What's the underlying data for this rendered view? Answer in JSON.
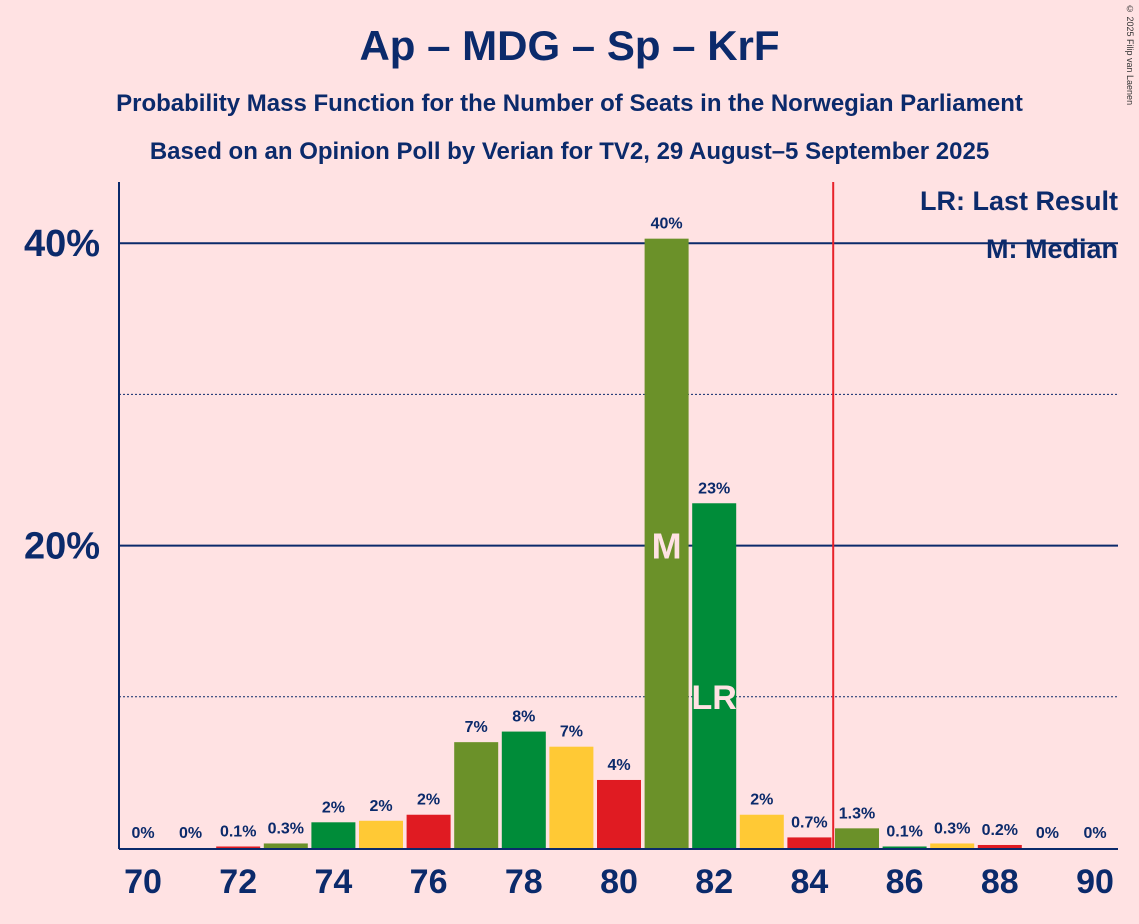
{
  "chart_data": {
    "type": "bar",
    "title": "Ap – MDG – Sp – KrF",
    "subtitle1": "Probability Mass Function for the Number of Seats in the Norwegian Parliament",
    "subtitle2": "Based on an Opinion Poll by Verian for TV2, 29 August–5 September 2025",
    "credit": "© 2025 Filip van Laenen",
    "x": [
      70,
      71,
      72,
      73,
      74,
      75,
      76,
      77,
      78,
      79,
      80,
      81,
      82,
      83,
      84,
      85,
      86,
      87,
      88,
      89,
      90
    ],
    "values": [
      0,
      0,
      0.1,
      0.3,
      1.7,
      1.8,
      2.2,
      7.0,
      7.7,
      6.7,
      4.5,
      40.3,
      22.8,
      2.2,
      0.7,
      1.3,
      0.1,
      0.3,
      0.2,
      0,
      0
    ],
    "labels": [
      "0%",
      "0%",
      "0.1%",
      "0.3%",
      "2%",
      "2%",
      "2%",
      "7%",
      "8%",
      "7%",
      "4%",
      "40%",
      "23%",
      "2%",
      "0.7%",
      "1.3%",
      "0.1%",
      "0.3%",
      "0.2%",
      "0%",
      "0%"
    ],
    "xticks": [
      "70",
      "72",
      "74",
      "76",
      "78",
      "80",
      "82",
      "84",
      "86",
      "88",
      "90"
    ],
    "yticks": [
      "20%",
      "40%"
    ],
    "ylim": [
      0,
      44
    ],
    "majority_line": 84.5,
    "median": 81,
    "median_label": "M",
    "last_result": 82,
    "last_result_label": "LR",
    "legend": [
      "LR: Last Result",
      "M: Median"
    ],
    "colors": [
      "#6b9129",
      "#008c39",
      "#ffc935",
      "#e01b22"
    ],
    "accent": "#0b2a6b"
  }
}
